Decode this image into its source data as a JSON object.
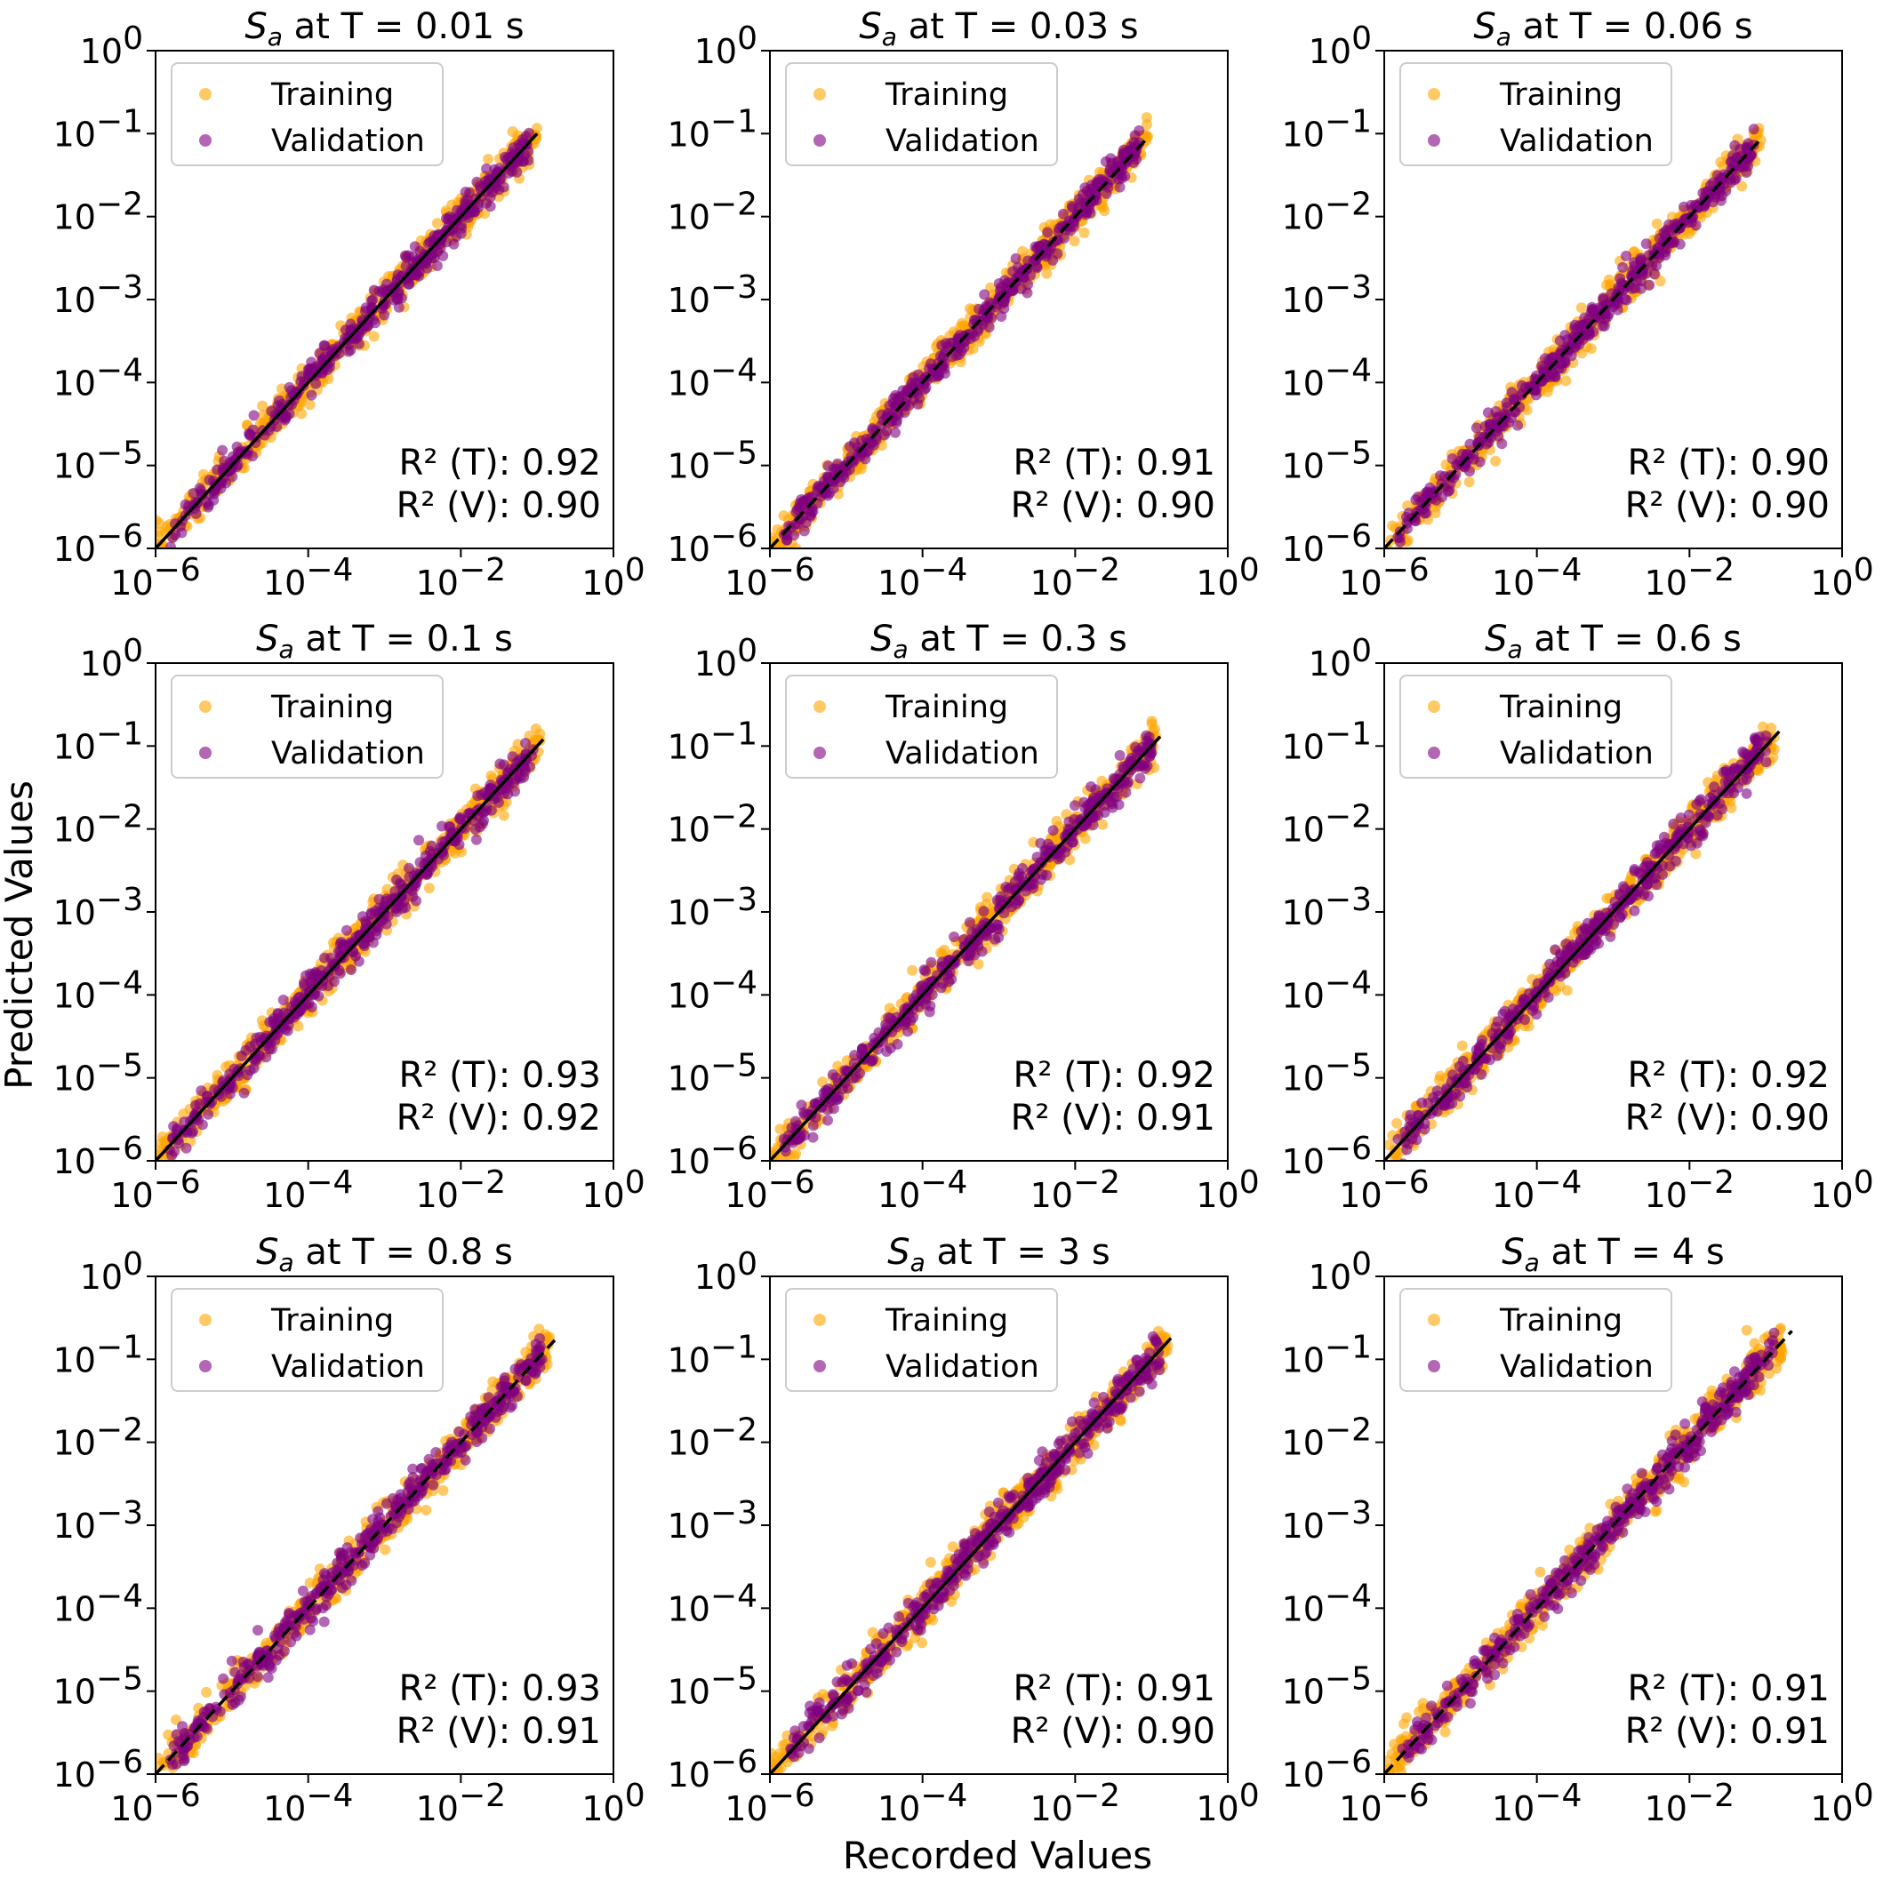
{
  "figure": {
    "ylabel": "Predicted Values",
    "xlabel": "Recorded Values"
  },
  "chart_data": [
    {
      "type": "scatter",
      "title_base": "S",
      "title_sub": "a",
      "title_rest": " at T = 0.01 s",
      "xlabel": "",
      "ylabel": "",
      "xlim": [
        1e-06,
        1
      ],
      "ylim": [
        1e-06,
        1
      ],
      "xscale": "log",
      "yscale": "log",
      "grid": false,
      "legend_position": "top-left",
      "x_ticks": [
        "10^-6",
        "10^-4",
        "10^-2",
        "10^0"
      ],
      "y_ticks": [
        "10^-6",
        "10^-5",
        "10^-4",
        "10^-3",
        "10^-2",
        "10^-1",
        "10^0"
      ],
      "series": [
        {
          "name": "Training",
          "color": "#ffa500",
          "x_range": [
            1e-06,
            0.1
          ],
          "scatter_decades": 0.12
        },
        {
          "name": "Validation",
          "color": "#800080",
          "x_range": [
            1.5e-06,
            0.08
          ],
          "scatter_decades": 0.1
        }
      ],
      "reference_line": {
        "from": [
          1e-06,
          1e-06
        ],
        "to": [
          0.1,
          0.1
        ],
        "style": "solid",
        "color": "#000000"
      },
      "annotations": [
        "R² (T): 0.92",
        "R² (V): 0.90"
      ]
    },
    {
      "type": "scatter",
      "title_base": "S",
      "title_sub": "a",
      "title_rest": " at T = 0.03 s",
      "xlabel": "",
      "ylabel": "",
      "xlim": [
        1e-06,
        1
      ],
      "ylim": [
        1e-06,
        1
      ],
      "xscale": "log",
      "yscale": "log",
      "grid": false,
      "legend_position": "top-left",
      "x_ticks": [
        "10^-6",
        "10^-4",
        "10^-2",
        "10^0"
      ],
      "y_ticks": [
        "10^-6",
        "10^-5",
        "10^-4",
        "10^-3",
        "10^-2",
        "10^-1",
        "10^0"
      ],
      "series": [
        {
          "name": "Training",
          "color": "#ffa500",
          "x_range": [
            1e-06,
            0.09
          ],
          "scatter_decades": 0.12
        },
        {
          "name": "Validation",
          "color": "#800080",
          "x_range": [
            1.5e-06,
            0.07
          ],
          "scatter_decades": 0.1
        }
      ],
      "reference_line": {
        "from": [
          1e-06,
          1e-06
        ],
        "to": [
          0.09,
          0.09
        ],
        "style": "dashed",
        "color": "#000000"
      },
      "annotations": [
        "R² (T): 0.91",
        "R² (V): 0.90"
      ]
    },
    {
      "type": "scatter",
      "title_base": "S",
      "title_sub": "a",
      "title_rest": " at T = 0.06 s",
      "xlabel": "",
      "ylabel": "",
      "xlim": [
        1e-06,
        1
      ],
      "ylim": [
        1e-06,
        1
      ],
      "xscale": "log",
      "yscale": "log",
      "grid": false,
      "legend_position": "top-left",
      "x_ticks": [
        "10^-6",
        "10^-4",
        "10^-2",
        "10^0"
      ],
      "y_ticks": [
        "10^-6",
        "10^-5",
        "10^-4",
        "10^-3",
        "10^-2",
        "10^-1",
        "10^0"
      ],
      "series": [
        {
          "name": "Training",
          "color": "#ffa500",
          "x_range": [
            1e-06,
            0.09
          ],
          "scatter_decades": 0.12
        },
        {
          "name": "Validation",
          "color": "#800080",
          "x_range": [
            1.5e-06,
            0.07
          ],
          "scatter_decades": 0.1
        }
      ],
      "reference_line": {
        "from": [
          1e-06,
          1e-06
        ],
        "to": [
          0.08,
          0.08
        ],
        "style": "dashed",
        "color": "#000000"
      },
      "annotations": [
        "R² (T): 0.90",
        "R² (V): 0.90"
      ]
    },
    {
      "type": "scatter",
      "title_base": "S",
      "title_sub": "a",
      "title_rest": " at T = 0.1 s",
      "xlabel": "",
      "ylabel": "",
      "xlim": [
        1e-06,
        1
      ],
      "ylim": [
        1e-06,
        1
      ],
      "xscale": "log",
      "yscale": "log",
      "grid": false,
      "legend_position": "top-left",
      "x_ticks": [
        "10^-6",
        "10^-4",
        "10^-2",
        "10^0"
      ],
      "y_ticks": [
        "10^-6",
        "10^-5",
        "10^-4",
        "10^-3",
        "10^-2",
        "10^-1",
        "10^0"
      ],
      "series": [
        {
          "name": "Training",
          "color": "#ffa500",
          "x_range": [
            1e-06,
            0.11
          ],
          "scatter_decades": 0.13
        },
        {
          "name": "Validation",
          "color": "#800080",
          "x_range": [
            1.5e-06,
            0.09
          ],
          "scatter_decades": 0.11
        }
      ],
      "reference_line": {
        "from": [
          1e-06,
          1e-06
        ],
        "to": [
          0.12,
          0.12
        ],
        "style": "solid",
        "color": "#000000"
      },
      "annotations": [
        "R² (T): 0.93",
        "R² (V): 0.92"
      ]
    },
    {
      "type": "scatter",
      "title_base": "S",
      "title_sub": "a",
      "title_rest": " at T = 0.3 s",
      "xlabel": "",
      "ylabel": "",
      "xlim": [
        1e-06,
        1
      ],
      "ylim": [
        1e-06,
        1
      ],
      "xscale": "log",
      "yscale": "log",
      "grid": false,
      "legend_position": "top-left",
      "x_ticks": [
        "10^-6",
        "10^-4",
        "10^-2",
        "10^0"
      ],
      "y_ticks": [
        "10^-6",
        "10^-5",
        "10^-4",
        "10^-3",
        "10^-2",
        "10^-1",
        "10^0"
      ],
      "series": [
        {
          "name": "Training",
          "color": "#ffa500",
          "x_range": [
            1e-06,
            0.12
          ],
          "scatter_decades": 0.13
        },
        {
          "name": "Validation",
          "color": "#800080",
          "x_range": [
            1.5e-06,
            0.1
          ],
          "scatter_decades": 0.11
        }
      ],
      "reference_line": {
        "from": [
          1e-06,
          1e-06
        ],
        "to": [
          0.13,
          0.13
        ],
        "style": "solid",
        "color": "#000000"
      },
      "annotations": [
        "R² (T): 0.92",
        "R² (V): 0.91"
      ]
    },
    {
      "type": "scatter",
      "title_base": "S",
      "title_sub": "a",
      "title_rest": " at T = 0.6 s",
      "xlabel": "",
      "ylabel": "",
      "xlim": [
        1e-06,
        1
      ],
      "ylim": [
        1e-06,
        1
      ],
      "xscale": "log",
      "yscale": "log",
      "grid": false,
      "legend_position": "top-left",
      "x_ticks": [
        "10^-6",
        "10^-4",
        "10^-2",
        "10^0"
      ],
      "y_ticks": [
        "10^-6",
        "10^-5",
        "10^-4",
        "10^-3",
        "10^-2",
        "10^-1",
        "10^0"
      ],
      "series": [
        {
          "name": "Training",
          "color": "#ffa500",
          "x_range": [
            1e-06,
            0.13
          ],
          "scatter_decades": 0.13
        },
        {
          "name": "Validation",
          "color": "#800080",
          "x_range": [
            1.5e-06,
            0.11
          ],
          "scatter_decades": 0.11
        }
      ],
      "reference_line": {
        "from": [
          1e-06,
          1e-06
        ],
        "to": [
          0.15,
          0.15
        ],
        "style": "solid",
        "color": "#000000"
      },
      "annotations": [
        "R² (T): 0.92",
        "R² (V): 0.90"
      ]
    },
    {
      "type": "scatter",
      "title_base": "S",
      "title_sub": "a",
      "title_rest": " at T = 0.8 s",
      "xlabel": "",
      "ylabel": "",
      "xlim": [
        1e-06,
        1
      ],
      "ylim": [
        1e-06,
        1
      ],
      "xscale": "log",
      "yscale": "log",
      "grid": false,
      "legend_position": "top-left",
      "x_ticks": [
        "10^-6",
        "10^-4",
        "10^-2",
        "10^0"
      ],
      "y_ticks": [
        "10^-6",
        "10^-5",
        "10^-4",
        "10^-3",
        "10^-2",
        "10^-1",
        "10^0"
      ],
      "series": [
        {
          "name": "Training",
          "color": "#ffa500",
          "x_range": [
            1e-06,
            0.15
          ],
          "scatter_decades": 0.13
        },
        {
          "name": "Validation",
          "color": "#800080",
          "x_range": [
            1.5e-06,
            0.12
          ],
          "scatter_decades": 0.11
        }
      ],
      "reference_line": {
        "from": [
          1e-06,
          1e-06
        ],
        "to": [
          0.17,
          0.17
        ],
        "style": "dashed",
        "color": "#000000"
      },
      "annotations": [
        "R² (T): 0.93",
        "R² (V): 0.91"
      ]
    },
    {
      "type": "scatter",
      "title_base": "S",
      "title_sub": "a",
      "title_rest": " at T = 3 s",
      "xlabel": "",
      "ylabel": "",
      "xlim": [
        1e-06,
        1
      ],
      "ylim": [
        1e-06,
        1
      ],
      "xscale": "log",
      "yscale": "log",
      "grid": false,
      "legend_position": "top-left",
      "x_ticks": [
        "10^-6",
        "10^-4",
        "10^-2",
        "10^0"
      ],
      "y_ticks": [
        "10^-6",
        "10^-5",
        "10^-4",
        "10^-3",
        "10^-2",
        "10^-1",
        "10^0"
      ],
      "series": [
        {
          "name": "Training",
          "color": "#ffa500",
          "x_range": [
            1e-06,
            0.17
          ],
          "scatter_decades": 0.14
        },
        {
          "name": "Validation",
          "color": "#800080",
          "x_range": [
            1.5e-06,
            0.13
          ],
          "scatter_decades": 0.11
        }
      ],
      "reference_line": {
        "from": [
          1e-06,
          1e-06
        ],
        "to": [
          0.18,
          0.18
        ],
        "style": "solid",
        "color": "#000000"
      },
      "annotations": [
        "R² (T): 0.91",
        "R² (V): 0.90"
      ]
    },
    {
      "type": "scatter",
      "title_base": "S",
      "title_sub": "a",
      "title_rest": " at T = 4 s",
      "xlabel": "",
      "ylabel": "",
      "xlim": [
        1e-06,
        1
      ],
      "ylim": [
        1e-06,
        1
      ],
      "xscale": "log",
      "yscale": "log",
      "grid": false,
      "legend_position": "top-left",
      "x_ticks": [
        "10^-6",
        "10^-4",
        "10^-2",
        "10^0"
      ],
      "y_ticks": [
        "10^-6",
        "10^-5",
        "10^-4",
        "10^-3",
        "10^-2",
        "10^-1",
        "10^0"
      ],
      "series": [
        {
          "name": "Training",
          "color": "#ffa500",
          "x_range": [
            1e-06,
            0.17
          ],
          "scatter_decades": 0.14
        },
        {
          "name": "Validation",
          "color": "#800080",
          "x_range": [
            1.5e-06,
            0.13
          ],
          "scatter_decades": 0.11
        }
      ],
      "reference_line": {
        "from": [
          1e-06,
          1e-06
        ],
        "to": [
          0.22,
          0.22
        ],
        "style": "dashed",
        "color": "#000000"
      },
      "annotations": [
        "R² (T): 0.91",
        "R² (V): 0.91"
      ]
    }
  ]
}
